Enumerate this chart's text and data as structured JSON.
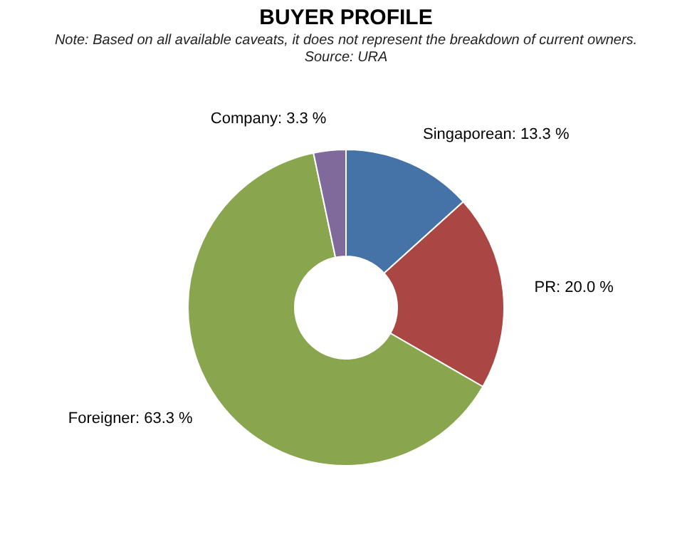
{
  "chart_data": {
    "type": "donut",
    "title": "BUYER PROFILE",
    "annotations": [
      "Note: Based on all available caveats, it does not represent the breakdown of current owners.",
      "Source: URA"
    ],
    "categories": [
      "Singaporean",
      "PR",
      "Foreigner",
      "Company"
    ],
    "values": [
      13.3,
      20.0,
      63.3,
      3.3
    ],
    "colors": [
      "#4572a7",
      "#aa4643",
      "#89a54e",
      "#80699b"
    ],
    "value_labels": [
      "13.3 %",
      "20.0 %",
      "63.3 %",
      "3.3 %"
    ],
    "legend": false
  }
}
